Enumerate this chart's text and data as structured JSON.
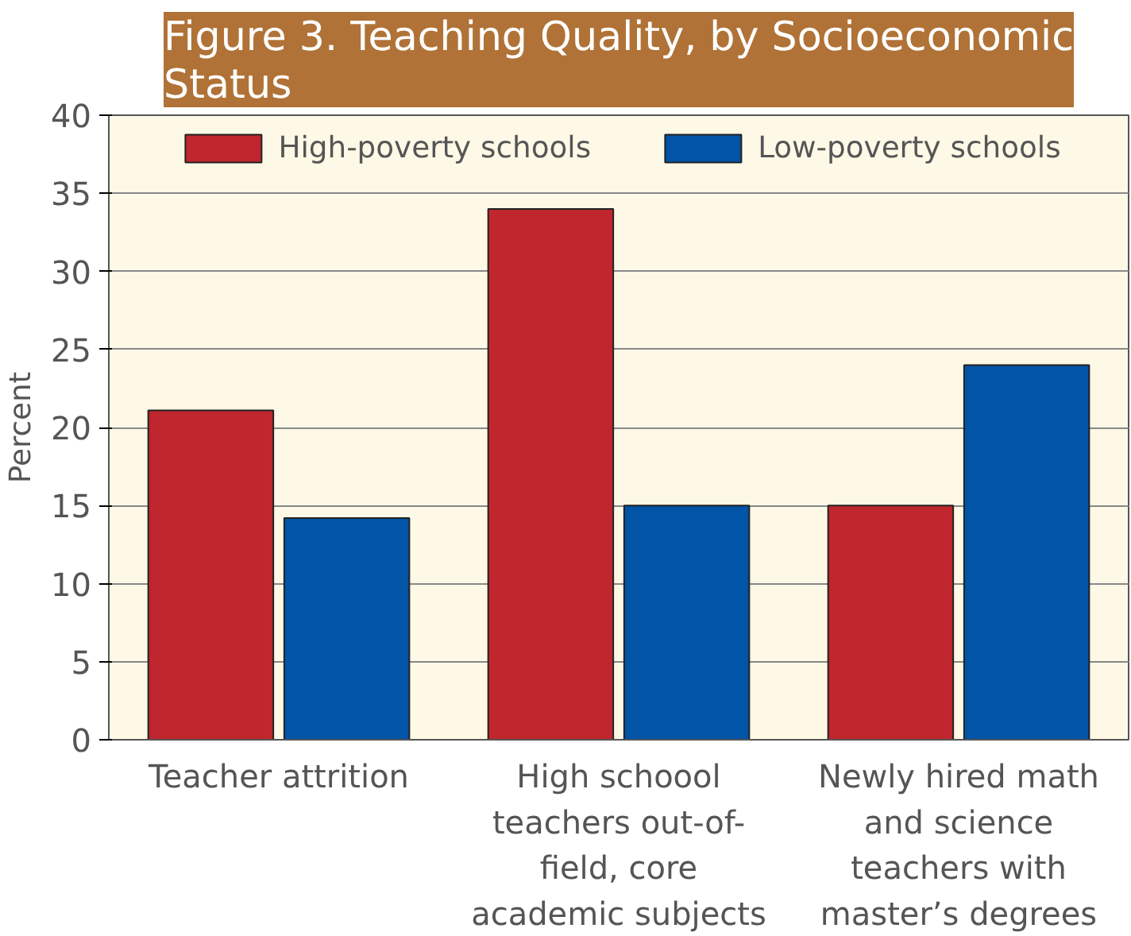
{
  "chart_data": {
    "type": "bar",
    "title": "Figure 3. Teaching Quality, by Socioeconomic Status",
    "ylabel": "Percent",
    "categories": [
      "Teacher attrition",
      "High schoool teachers out-of-field, core academic subjects",
      "Newly hired math and science teachers with master’s degrees"
    ],
    "series": [
      {
        "name": "High-poverty schools",
        "color": "#c0262d",
        "values": [
          21.1,
          34,
          15
        ]
      },
      {
        "name": "Low-poverty schools",
        "color": "#0254a6",
        "values": [
          14.2,
          15,
          24
        ]
      }
    ],
    "ylim": [
      0,
      40
    ],
    "yticks": [
      0,
      5,
      10,
      15,
      20,
      25,
      30,
      35,
      40
    ],
    "grid": "y",
    "legend": "top"
  }
}
